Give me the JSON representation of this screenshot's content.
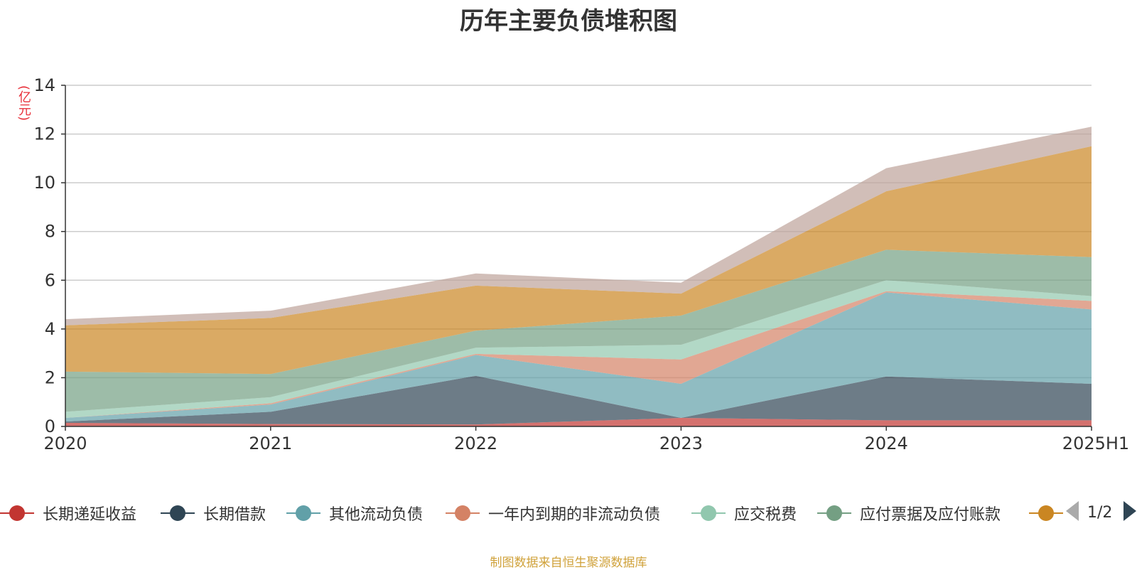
{
  "chart_data": {
    "type": "area",
    "stacked": true,
    "title": "历年主要负债堆积图",
    "unit_label": "(亿元)",
    "source_note": "制图数据来自恒生聚源数据库",
    "categories": [
      "2020",
      "2021",
      "2022",
      "2023",
      "2024",
      "2025H1"
    ],
    "ylim": [
      0,
      14
    ],
    "y_ticks": [
      0,
      2,
      4,
      6,
      8,
      10,
      12,
      14
    ],
    "grid": true,
    "legend_position": "bottom",
    "legend_page": "1/2",
    "series": [
      {
        "name": "长期递延收益",
        "color": "#c23531",
        "values": [
          0.15,
          0.1,
          0.08,
          0.35,
          0.25,
          0.25
        ]
      },
      {
        "name": "长期借款",
        "color": "#2f4554",
        "values": [
          0.05,
          0.5,
          2.0,
          0.0,
          1.8,
          1.5
        ]
      },
      {
        "name": "其他流动负债",
        "color": "#61a0a8",
        "values": [
          0.15,
          0.3,
          0.85,
          1.4,
          3.45,
          3.05
        ]
      },
      {
        "name": "一年内到期的非流动负债",
        "color": "#d48265",
        "values": [
          0.0,
          0.05,
          0.05,
          1.0,
          0.05,
          0.35
        ]
      },
      {
        "name": "应交税费",
        "color": "#91c7ae",
        "values": [
          0.25,
          0.25,
          0.25,
          0.6,
          0.45,
          0.2
        ]
      },
      {
        "name": "应付票据及应付账款",
        "color": "#749f83",
        "values": [
          1.65,
          0.95,
          0.7,
          1.2,
          1.25,
          1.6
        ]
      },
      {
        "name": "",
        "color": "#ca8622",
        "values": [
          1.9,
          2.3,
          1.85,
          0.9,
          2.4,
          4.55
        ]
      },
      {
        "name": "",
        "color": "#bda29a",
        "values": [
          0.25,
          0.3,
          0.5,
          0.45,
          0.95,
          0.8
        ]
      }
    ]
  }
}
